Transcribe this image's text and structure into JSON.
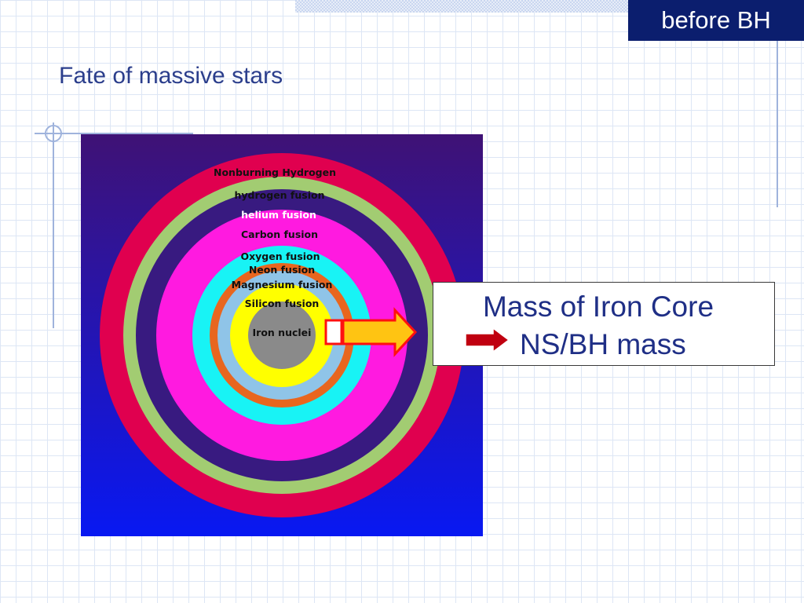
{
  "header": {
    "tag": "before BH"
  },
  "slide": {
    "title": "Fate of massive stars"
  },
  "diagram": {
    "shell_labels": [
      "Nonburning Hydrogen",
      "hydrogen fusion",
      "helium fusion",
      "Carbon fusion",
      "Oxygen fusion",
      "Neon fusion",
      "Magnesium fusion",
      "Silicon fusion",
      "Iron nuclei"
    ],
    "colors": {
      "background_top": "#3f1275",
      "background_bottom": "#0818f2",
      "nonburning_hydrogen": "#e0004f",
      "hydrogen_fusion": "#a2cc72",
      "helium_fusion": "#381a80",
      "carbon_oxygen_fusion": "#ff1ae0",
      "neon_fusion": "#18f3f5",
      "magnesium_fusion": "#e8661f",
      "silicon_fusion": "#8fc4e8",
      "iron_shell": "#ffff00",
      "iron_nuclei": "#8a8a8a",
      "arrow_fill": "#ffc412",
      "arrow_outline": "#ff1010"
    }
  },
  "callout": {
    "line1": "Mass of Iron Core",
    "line2": "NS/BH mass",
    "arrow_color": "#c00010"
  }
}
